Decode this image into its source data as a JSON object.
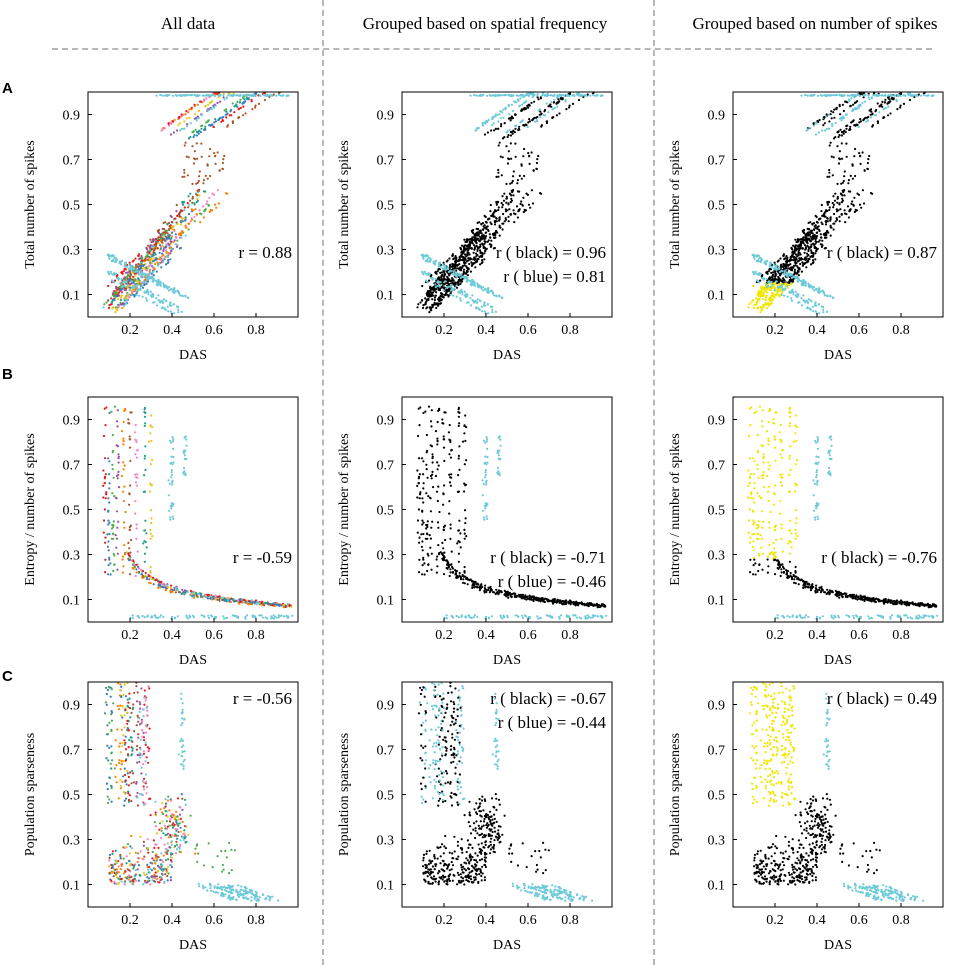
{
  "figure": {
    "column_titles": [
      "All data",
      "Grouped based on spatial frequency",
      "Grouped based on number of spikes"
    ],
    "row_labels": [
      "A",
      "B",
      "C"
    ]
  },
  "colors": {
    "blue": "#6ccad8",
    "black": "#000000",
    "yellow": "#f2e600",
    "separator": "#b8b8b8",
    "palette": [
      "#e41a1c",
      "#377eb8",
      "#4daf4a",
      "#984ea3",
      "#ff7f00",
      "#a65628",
      "#f781bf",
      "#1f9e89",
      "#e6c619",
      "#6ccad8"
    ]
  },
  "chart_data": [
    {
      "id": "A1",
      "type": "scatter",
      "row": "A",
      "column": "All data",
      "xlabel": "DAS",
      "ylabel": "Total number of spikes",
      "xticks": [
        0.2,
        0.4,
        0.6,
        0.8
      ],
      "yticks": [
        0.1,
        0.3,
        0.5,
        0.7,
        0.9
      ],
      "xlim": [
        0,
        1
      ],
      "ylim": [
        0,
        1
      ],
      "color_mode": "multicolor",
      "annotations": [
        "r = 0.88"
      ],
      "annotation_position": "middle-right"
    },
    {
      "id": "A2",
      "type": "scatter",
      "row": "A",
      "column": "Grouped based on spatial frequency",
      "xlabel": "DAS",
      "ylabel": "Total number of spikes",
      "xticks": [
        0.2,
        0.4,
        0.6,
        0.8
      ],
      "yticks": [
        0.1,
        0.3,
        0.5,
        0.7,
        0.9
      ],
      "xlim": [
        0,
        1
      ],
      "ylim": [
        0,
        1
      ],
      "color_mode": "black-blue",
      "annotations": [
        "r ( black) = 0.96",
        "r ( blue) = 0.81"
      ],
      "annotation_position": "middle-right"
    },
    {
      "id": "A3",
      "type": "scatter",
      "row": "A",
      "column": "Grouped based on number of spikes",
      "xlabel": "DAS",
      "ylabel": "Total number of spikes",
      "xticks": [
        0.2,
        0.4,
        0.6,
        0.8
      ],
      "yticks": [
        0.1,
        0.3,
        0.5,
        0.7,
        0.9
      ],
      "xlim": [
        0,
        1
      ],
      "ylim": [
        0,
        1
      ],
      "color_mode": "black-yellow",
      "annotations": [
        "r ( black) = 0.87"
      ],
      "annotation_position": "middle-right"
    },
    {
      "id": "B1",
      "type": "scatter",
      "row": "B",
      "column": "All data",
      "xlabel": "DAS",
      "ylabel": "Entropy / number of spikes",
      "xticks": [
        0.2,
        0.4,
        0.6,
        0.8
      ],
      "yticks": [
        0.1,
        0.3,
        0.5,
        0.7,
        0.9
      ],
      "xlim": [
        0,
        1
      ],
      "ylim": [
        0,
        1
      ],
      "color_mode": "multicolor",
      "annotations": [
        "r = -0.59"
      ],
      "annotation_position": "middle-right"
    },
    {
      "id": "B2",
      "type": "scatter",
      "row": "B",
      "column": "Grouped based on spatial frequency",
      "xlabel": "DAS",
      "ylabel": "Entropy / number of spikes",
      "xticks": [
        0.2,
        0.4,
        0.6,
        0.8
      ],
      "yticks": [
        0.1,
        0.3,
        0.5,
        0.7,
        0.9
      ],
      "xlim": [
        0,
        1
      ],
      "ylim": [
        0,
        1
      ],
      "color_mode": "black-blue",
      "annotations": [
        "r ( black) = -0.71",
        "r ( blue) = -0.46"
      ],
      "annotation_position": "middle-right"
    },
    {
      "id": "B3",
      "type": "scatter",
      "row": "B",
      "column": "Grouped based on number of spikes",
      "xlabel": "DAS",
      "ylabel": "Entropy / number of spikes",
      "xticks": [
        0.2,
        0.4,
        0.6,
        0.8
      ],
      "yticks": [
        0.1,
        0.3,
        0.5,
        0.7,
        0.9
      ],
      "xlim": [
        0,
        1
      ],
      "ylim": [
        0,
        1
      ],
      "color_mode": "black-yellow",
      "annotations": [
        "r ( black) = -0.76"
      ],
      "annotation_position": "middle-right"
    },
    {
      "id": "C1",
      "type": "scatter",
      "row": "C",
      "column": "All data",
      "xlabel": "DAS",
      "ylabel": "Population sparseness",
      "xticks": [
        0.2,
        0.4,
        0.6,
        0.8
      ],
      "yticks": [
        0.1,
        0.3,
        0.5,
        0.7,
        0.9
      ],
      "xlim": [
        0,
        1
      ],
      "ylim": [
        0,
        1
      ],
      "color_mode": "multicolor",
      "annotations": [
        "r = -0.56"
      ],
      "annotation_position": "top-right"
    },
    {
      "id": "C2",
      "type": "scatter",
      "row": "C",
      "column": "Grouped based on spatial frequency",
      "xlabel": "DAS",
      "ylabel": "Population sparseness",
      "xticks": [
        0.2,
        0.4,
        0.6,
        0.8
      ],
      "yticks": [
        0.1,
        0.3,
        0.5,
        0.7,
        0.9
      ],
      "xlim": [
        0,
        1
      ],
      "ylim": [
        0,
        1
      ],
      "color_mode": "black-blue",
      "annotations": [
        "r ( black) = -0.67",
        "r ( blue) = -0.44"
      ],
      "annotation_position": "top-right"
    },
    {
      "id": "C3",
      "type": "scatter",
      "row": "C",
      "column": "Grouped based on number of spikes",
      "xlabel": "DAS",
      "ylabel": "Population sparseness",
      "xticks": [
        0.2,
        0.4,
        0.6,
        0.8
      ],
      "yticks": [
        0.1,
        0.3,
        0.5,
        0.7,
        0.9
      ],
      "xlim": [
        0,
        1
      ],
      "ylim": [
        0,
        1
      ],
      "color_mode": "black-yellow",
      "annotations": [
        "r ( black) = 0.49"
      ],
      "annotation_position": "top-right"
    }
  ]
}
